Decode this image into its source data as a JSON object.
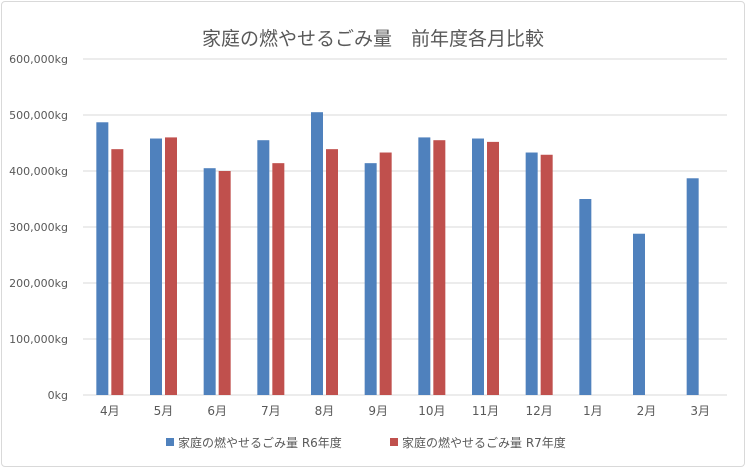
{
  "chart_data": {
    "type": "bar",
    "title": "家庭の燃やせるごみ量　前年度各月比較",
    "xlabel": "",
    "ylabel": "",
    "categories": [
      "4月",
      "5月",
      "6月",
      "7月",
      "8月",
      "9月",
      "10月",
      "11月",
      "12月",
      "1月",
      "2月",
      "3月"
    ],
    "series": [
      {
        "name": "家庭の燃やせるごみ量 R6年度",
        "color": "#4f81bd",
        "values": [
          487000,
          458000,
          405000,
          455000,
          505000,
          414000,
          460000,
          458000,
          433000,
          350000,
          288000,
          387000
        ]
      },
      {
        "name": "家庭の燃やせるごみ量 R7年度",
        "color": "#c0504d",
        "values": [
          439000,
          460000,
          400000,
          414000,
          439000,
          433000,
          455000,
          452000,
          429000,
          null,
          null,
          null
        ]
      }
    ],
    "ylim": [
      0,
      600000
    ],
    "yticks": [
      0,
      100000,
      200000,
      300000,
      400000,
      500000,
      600000
    ],
    "ytick_labels": [
      "0kg",
      "100,000kg",
      "200,000kg",
      "300,000kg",
      "400,000kg",
      "500,000kg",
      "600,000kg"
    ],
    "grid": true,
    "legend": "bottom"
  }
}
